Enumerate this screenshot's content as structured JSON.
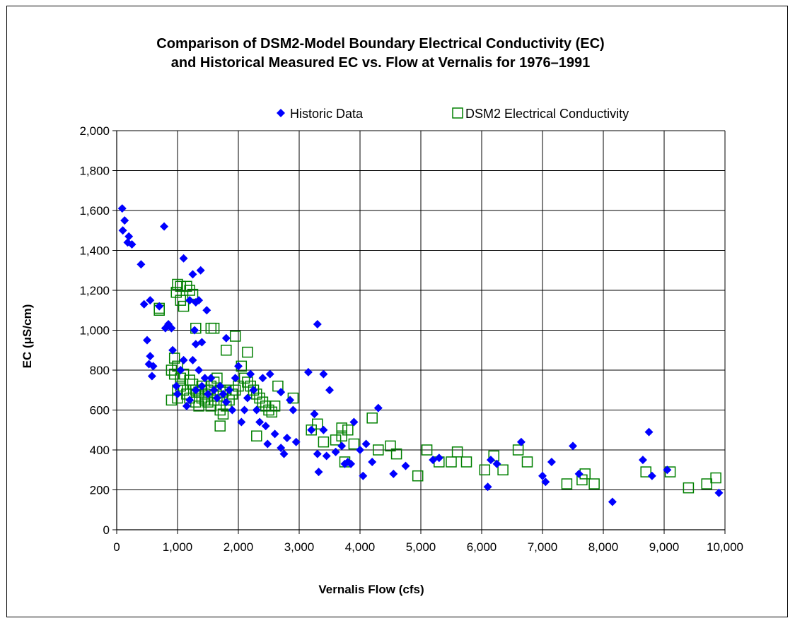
{
  "chart_data": {
    "type": "scatter",
    "title": "Comparison of DSM2-Model Boundary Electrical Conductivity (EC)",
    "subtitle": "and Historical Measured EC vs. Flow at Vernalis for 1976–1991",
    "xlabel": "Vernalis Flow (cfs)",
    "ylabel": "EC (μS/cm)",
    "xlim": [
      0,
      10000
    ],
    "ylim": [
      0,
      2000
    ],
    "x_ticks": [
      "0",
      "1,000",
      "2,000",
      "3,000",
      "4,000",
      "5,000",
      "6,000",
      "7,000",
      "8,000",
      "9,000",
      "10,000"
    ],
    "y_ticks": [
      "0",
      "200",
      "400",
      "600",
      "800",
      "1,000",
      "1,200",
      "1,400",
      "1,600",
      "1,800",
      "2,000"
    ],
    "grid": true,
    "legend_position": "top",
    "series": [
      {
        "name": "Historic Data",
        "marker": "diamond",
        "color": "#0000ff",
        "points": [
          [
            90,
            1610
          ],
          [
            130,
            1550
          ],
          [
            100,
            1500
          ],
          [
            200,
            1470
          ],
          [
            180,
            1440
          ],
          [
            250,
            1430
          ],
          [
            400,
            1330
          ],
          [
            780,
            1520
          ],
          [
            450,
            1130
          ],
          [
            550,
            1150
          ],
          [
            700,
            1120
          ],
          [
            500,
            950
          ],
          [
            550,
            870
          ],
          [
            530,
            830
          ],
          [
            600,
            820
          ],
          [
            580,
            770
          ],
          [
            800,
            1010
          ],
          [
            850,
            1030
          ],
          [
            900,
            1010
          ],
          [
            920,
            900
          ],
          [
            980,
            720
          ],
          [
            1000,
            680
          ],
          [
            1050,
            800
          ],
          [
            1100,
            850
          ],
          [
            1100,
            1360
          ],
          [
            1250,
            1280
          ],
          [
            1380,
            1300
          ],
          [
            1480,
            1100
          ],
          [
            1350,
            1150
          ],
          [
            1200,
            1150
          ],
          [
            1300,
            1140
          ],
          [
            1280,
            1000
          ],
          [
            1300,
            930
          ],
          [
            1400,
            940
          ],
          [
            1250,
            850
          ],
          [
            1350,
            800
          ],
          [
            1450,
            760
          ],
          [
            1150,
            620
          ],
          [
            1200,
            650
          ],
          [
            1300,
            700
          ],
          [
            1400,
            720
          ],
          [
            1500,
            680
          ],
          [
            1550,
            760
          ],
          [
            1600,
            700
          ],
          [
            1650,
            660
          ],
          [
            1700,
            720
          ],
          [
            1750,
            680
          ],
          [
            1800,
            640
          ],
          [
            1850,
            700
          ],
          [
            1900,
            600
          ],
          [
            1950,
            760
          ],
          [
            2000,
            820
          ],
          [
            2050,
            540
          ],
          [
            2100,
            600
          ],
          [
            2150,
            660
          ],
          [
            2200,
            780
          ],
          [
            2250,
            700
          ],
          [
            2300,
            600
          ],
          [
            2350,
            540
          ],
          [
            2400,
            760
          ],
          [
            2450,
            520
          ],
          [
            2480,
            430
          ],
          [
            2520,
            780
          ],
          [
            2600,
            480
          ],
          [
            2700,
            690
          ],
          [
            2700,
            410
          ],
          [
            2750,
            380
          ],
          [
            2800,
            460
          ],
          [
            2850,
            650
          ],
          [
            2900,
            600
          ],
          [
            2950,
            440
          ],
          [
            1800,
            960
          ],
          [
            3150,
            790
          ],
          [
            3200,
            500
          ],
          [
            3250,
            580
          ],
          [
            3300,
            380
          ],
          [
            3320,
            290
          ],
          [
            3300,
            1030
          ],
          [
            3400,
            780
          ],
          [
            3400,
            500
          ],
          [
            3450,
            370
          ],
          [
            3500,
            700
          ],
          [
            3600,
            390
          ],
          [
            3700,
            420
          ],
          [
            3750,
            330
          ],
          [
            3800,
            340
          ],
          [
            3850,
            330
          ],
          [
            3900,
            540
          ],
          [
            4000,
            400
          ],
          [
            4050,
            270
          ],
          [
            4100,
            430
          ],
          [
            4200,
            340
          ],
          [
            4300,
            610
          ],
          [
            4550,
            280
          ],
          [
            4750,
            320
          ],
          [
            5200,
            350
          ],
          [
            5300,
            360
          ],
          [
            6100,
            215
          ],
          [
            6150,
            350
          ],
          [
            6250,
            330
          ],
          [
            6650,
            440
          ],
          [
            7000,
            270
          ],
          [
            7050,
            240
          ],
          [
            7150,
            340
          ],
          [
            7500,
            420
          ],
          [
            7600,
            280
          ],
          [
            8150,
            140
          ],
          [
            8650,
            350
          ],
          [
            8750,
            490
          ],
          [
            8800,
            270
          ],
          [
            9050,
            300
          ],
          [
            9900,
            185
          ]
        ]
      },
      {
        "name": "DSM2 Electrical Conductivity",
        "marker": "square-open",
        "color": "#008000",
        "points": [
          [
            700,
            1110
          ],
          [
            700,
            1100
          ],
          [
            1000,
            1230
          ],
          [
            1050,
            1220
          ],
          [
            1050,
            1150
          ],
          [
            1100,
            1120
          ],
          [
            1150,
            1220
          ],
          [
            980,
            1190
          ],
          [
            1200,
            1200
          ],
          [
            1250,
            1180
          ],
          [
            1300,
            1010
          ],
          [
            1550,
            1010
          ],
          [
            1600,
            1010
          ],
          [
            950,
            860
          ],
          [
            1000,
            820
          ],
          [
            900,
            800
          ],
          [
            950,
            780
          ],
          [
            1050,
            760
          ],
          [
            1000,
            700
          ],
          [
            1100,
            700
          ],
          [
            1150,
            680
          ],
          [
            1200,
            660
          ],
          [
            1000,
            660
          ],
          [
            900,
            650
          ],
          [
            1050,
            720
          ],
          [
            1100,
            780
          ],
          [
            1200,
            750
          ],
          [
            1250,
            730
          ],
          [
            1300,
            700
          ],
          [
            1350,
            690
          ],
          [
            1400,
            720
          ],
          [
            1450,
            680
          ],
          [
            1500,
            700
          ],
          [
            1550,
            720
          ],
          [
            1600,
            740
          ],
          [
            1650,
            760
          ],
          [
            1700,
            700
          ],
          [
            1750,
            690
          ],
          [
            1800,
            700
          ],
          [
            1300,
            640
          ],
          [
            1350,
            620
          ],
          [
            1400,
            660
          ],
          [
            1450,
            650
          ],
          [
            1500,
            640
          ],
          [
            1550,
            620
          ],
          [
            1600,
            650
          ],
          [
            1650,
            670
          ],
          [
            1700,
            600
          ],
          [
            1750,
            580
          ],
          [
            1800,
            620
          ],
          [
            1850,
            650
          ],
          [
            1900,
            680
          ],
          [
            1950,
            700
          ],
          [
            2000,
            720
          ],
          [
            1950,
            970
          ],
          [
            1800,
            900
          ],
          [
            2150,
            890
          ],
          [
            2050,
            820
          ],
          [
            2100,
            760
          ],
          [
            2150,
            740
          ],
          [
            2200,
            720
          ],
          [
            2250,
            700
          ],
          [
            2300,
            680
          ],
          [
            2350,
            660
          ],
          [
            2400,
            640
          ],
          [
            2450,
            620
          ],
          [
            2500,
            600
          ],
          [
            2550,
            590
          ],
          [
            1700,
            520
          ],
          [
            2300,
            470
          ],
          [
            2600,
            620
          ],
          [
            2650,
            720
          ],
          [
            2900,
            660
          ],
          [
            3200,
            500
          ],
          [
            3300,
            530
          ],
          [
            3400,
            440
          ],
          [
            3600,
            450
          ],
          [
            3700,
            470
          ],
          [
            3700,
            510
          ],
          [
            3800,
            500
          ],
          [
            3750,
            340
          ],
          [
            3900,
            430
          ],
          [
            4200,
            560
          ],
          [
            4300,
            400
          ],
          [
            4500,
            420
          ],
          [
            4600,
            380
          ],
          [
            4950,
            270
          ],
          [
            5100,
            400
          ],
          [
            5300,
            340
          ],
          [
            5500,
            340
          ],
          [
            5600,
            390
          ],
          [
            5750,
            340
          ],
          [
            6050,
            300
          ],
          [
            6200,
            370
          ],
          [
            6350,
            300
          ],
          [
            6600,
            400
          ],
          [
            6750,
            340
          ],
          [
            7400,
            230
          ],
          [
            7650,
            250
          ],
          [
            7700,
            280
          ],
          [
            7850,
            230
          ],
          [
            8700,
            290
          ],
          [
            9100,
            290
          ],
          [
            9400,
            210
          ],
          [
            9700,
            230
          ],
          [
            9850,
            260
          ]
        ]
      }
    ]
  }
}
